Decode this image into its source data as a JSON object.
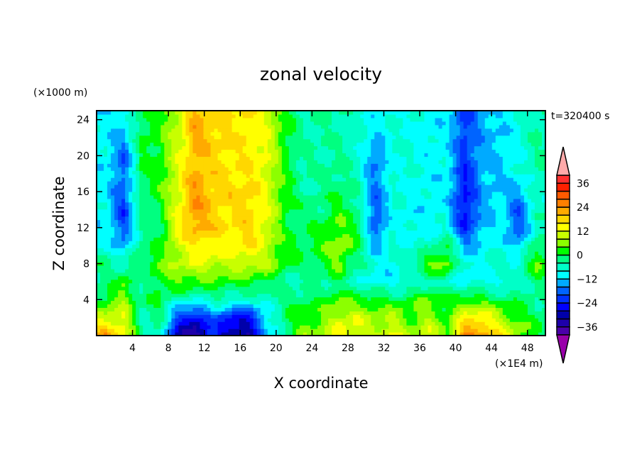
{
  "chart_data": {
    "type": "heatmap",
    "title": "zonal velocity",
    "xlabel": "X coordinate",
    "ylabel": "Z coordinate",
    "x_units": "(×1E4 m)",
    "y_units": "(×1000 m)",
    "time_label": "t=320400 s",
    "xlim": [
      0,
      50
    ],
    "ylim": [
      0,
      25
    ],
    "x_ticks": [
      4,
      8,
      12,
      16,
      20,
      24,
      28,
      32,
      36,
      40,
      44,
      48
    ],
    "y_ticks": [
      4,
      8,
      12,
      16,
      20,
      24
    ],
    "grid_x": [
      1,
      3,
      5,
      7,
      9,
      11,
      13,
      15,
      17,
      19,
      21,
      23,
      25,
      27,
      29,
      31,
      33,
      35,
      37,
      39,
      41,
      43,
      45,
      47,
      49
    ],
    "grid_z": [
      0,
      2,
      4,
      6,
      8,
      10,
      12,
      14,
      16,
      18,
      20,
      22,
      24
    ],
    "values_by_z": [
      [
        24,
        14,
        -6,
        -6,
        -30,
        -36,
        -22,
        -34,
        -32,
        -14,
        -2,
        6,
        6,
        16,
        10,
        10,
        14,
        6,
        12,
        4,
        26,
        24,
        16,
        6,
        0
      ],
      [
        10,
        12,
        -4,
        -2,
        -20,
        -28,
        -18,
        -26,
        -26,
        -10,
        -2,
        4,
        4,
        10,
        12,
        6,
        8,
        4,
        8,
        2,
        14,
        16,
        8,
        4,
        0
      ],
      [
        2,
        6,
        -2,
        0,
        -6,
        -8,
        -4,
        -6,
        -8,
        -6,
        -2,
        0,
        0,
        4,
        2,
        2,
        0,
        2,
        4,
        0,
        4,
        2,
        0,
        -2,
        -4
      ],
      [
        -4,
        4,
        -6,
        2,
        4,
        4,
        2,
        2,
        2,
        0,
        -4,
        -6,
        -4,
        -2,
        -6,
        -10,
        -10,
        -8,
        -4,
        -6,
        -10,
        -8,
        -10,
        -6,
        -2
      ],
      [
        -2,
        -6,
        0,
        4,
        8,
        12,
        10,
        10,
        10,
        8,
        2,
        -2,
        0,
        6,
        -4,
        -8,
        -10,
        -4,
        4,
        6,
        -10,
        -8,
        -6,
        -6,
        4
      ],
      [
        -8,
        -14,
        -2,
        0,
        10,
        16,
        14,
        14,
        16,
        10,
        2,
        0,
        2,
        8,
        0,
        -14,
        -6,
        -8,
        -6,
        0,
        -14,
        -10,
        -8,
        -14,
        0
      ],
      [
        -10,
        -20,
        -4,
        -2,
        14,
        22,
        18,
        16,
        18,
        12,
        0,
        -2,
        0,
        4,
        2,
        -20,
        -8,
        -10,
        -10,
        -8,
        -24,
        -14,
        -10,
        -20,
        -6
      ],
      [
        -10,
        -22,
        -2,
        0,
        12,
        24,
        18,
        16,
        18,
        12,
        2,
        -2,
        -2,
        2,
        -2,
        -20,
        -8,
        -10,
        -10,
        -10,
        -26,
        -14,
        -10,
        -20,
        -6
      ],
      [
        -10,
        -20,
        -2,
        2,
        12,
        24,
        18,
        18,
        18,
        12,
        2,
        -4,
        -4,
        0,
        -4,
        -18,
        -8,
        -8,
        -10,
        -10,
        -26,
        -14,
        -12,
        -14,
        -6
      ],
      [
        -10,
        -18,
        0,
        2,
        12,
        22,
        18,
        16,
        16,
        12,
        2,
        -4,
        -4,
        -2,
        -6,
        -16,
        -8,
        -8,
        -10,
        -10,
        -24,
        -14,
        -12,
        -10,
        -4
      ],
      [
        -10,
        -20,
        0,
        2,
        10,
        20,
        18,
        16,
        16,
        12,
        2,
        -4,
        -4,
        -4,
        -6,
        -18,
        -8,
        -8,
        -10,
        -10,
        -22,
        -14,
        -12,
        -8,
        -4
      ],
      [
        -10,
        -14,
        0,
        2,
        10,
        22,
        18,
        16,
        16,
        12,
        2,
        -4,
        -4,
        -4,
        -6,
        -12,
        -8,
        -8,
        -10,
        -10,
        -22,
        -14,
        -12,
        -8,
        -4
      ],
      [
        -10,
        -12,
        0,
        2,
        10,
        22,
        18,
        16,
        16,
        12,
        2,
        -4,
        -4,
        -4,
        -6,
        -10,
        -8,
        -8,
        -10,
        -10,
        -22,
        -14,
        -12,
        -8,
        -4
      ]
    ],
    "colorbar": {
      "levels": [
        -40,
        -36,
        -32,
        -28,
        -24,
        -20,
        -16,
        -12,
        -8,
        -4,
        0,
        4,
        8,
        12,
        16,
        20,
        24,
        28,
        32,
        36,
        40
      ],
      "tick_labels": [
        "36",
        "24",
        "12",
        "0",
        "−12",
        "−24",
        "−36"
      ],
      "tick_values": [
        36,
        24,
        12,
        0,
        -12,
        -24,
        -36
      ],
      "colors": [
        "#4b00aa",
        "#1e00aa",
        "#0000aa",
        "#0000ff",
        "#0032ff",
        "#0064ff",
        "#00aaff",
        "#00ffff",
        "#00ffc8",
        "#00ff80",
        "#00ff00",
        "#8cff00",
        "#c8ff00",
        "#ffff00",
        "#ffd700",
        "#ffaa00",
        "#ff7f00",
        "#ff5a00",
        "#ff2000",
        "#ff3030"
      ],
      "under_color": "#9900aa",
      "over_color": "#ffaaaa"
    }
  }
}
